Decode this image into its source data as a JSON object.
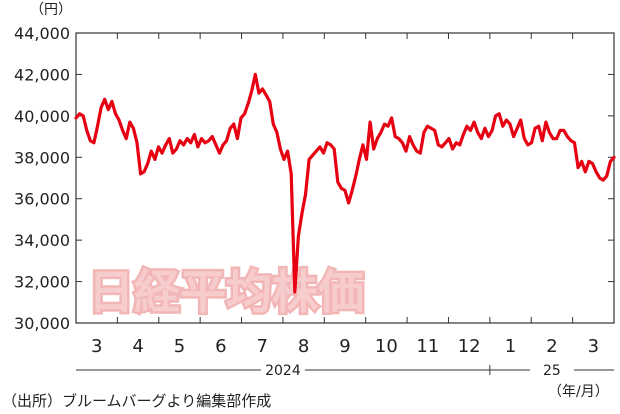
{
  "chart_data": {
    "type": "line",
    "title": "",
    "watermark": "日経平均株価",
    "y_unit": "（円）",
    "x_unit": "（年/月）",
    "source": "（出所）ブルームバーグより編集部作成",
    "ylim": [
      30000,
      44000
    ],
    "y_ticks": [
      "30,000",
      "32,000",
      "34,000",
      "36,000",
      "38,000",
      "40,000",
      "42,000",
      "44,000"
    ],
    "y_tick_values": [
      30000,
      32000,
      34000,
      36000,
      38000,
      40000,
      42000,
      44000
    ],
    "months": [
      "3",
      "4",
      "5",
      "6",
      "7",
      "8",
      "9",
      "10",
      "11",
      "12",
      "1",
      "2",
      "3"
    ],
    "years": [
      {
        "label": "2024",
        "start_month": 0,
        "end_month": 9
      },
      {
        "label": "25",
        "start_month": 10,
        "end_month": 12
      }
    ],
    "grid": false,
    "line_color": "#e60012",
    "series": [
      {
        "values": [
          39900,
          40100,
          40000,
          39300,
          38800,
          38700,
          39500,
          40400,
          40800,
          40300,
          40700,
          40100,
          39800,
          39300,
          38900,
          39700,
          39400,
          38700,
          37200,
          37300,
          37700,
          38300,
          37900,
          38500,
          38200,
          38600,
          38900,
          38200,
          38400,
          38800,
          38600,
          38900,
          38700,
          39100,
          38500,
          38900,
          38700,
          38800,
          39000,
          38600,
          38200,
          38600,
          38800,
          39400,
          39600,
          38900,
          39900,
          40100,
          40600,
          41200,
          42000,
          41100,
          41300,
          41000,
          40700,
          39600,
          39200,
          38400,
          37900,
          38300,
          37200,
          31500,
          34200,
          35300,
          36200,
          37900,
          38100,
          38300,
          38500,
          38200,
          38700,
          38600,
          38400,
          36800,
          36500,
          36400,
          35800,
          36400,
          37100,
          37900,
          38600,
          37900,
          39700,
          38400,
          38900,
          39200,
          39600,
          39500,
          39900,
          39000,
          38900,
          38700,
          38300,
          39000,
          38600,
          38300,
          38200,
          39200,
          39500,
          39400,
          39300,
          38600,
          38500,
          38700,
          38900,
          38400,
          38700,
          38600,
          39100,
          39500,
          39300,
          39700,
          39200,
          38900,
          39400,
          39000,
          39300,
          40000,
          40100,
          39500,
          39800,
          39600,
          39000,
          39400,
          39800,
          38900,
          38600,
          38700,
          39400,
          39500,
          38800,
          39700,
          39200,
          38900,
          38900,
          39300,
          39300,
          39000,
          38800,
          38700,
          37500,
          37800,
          37300,
          37800,
          37700,
          37300,
          37000,
          36900,
          37100,
          37800,
          38000
        ]
      }
    ]
  }
}
